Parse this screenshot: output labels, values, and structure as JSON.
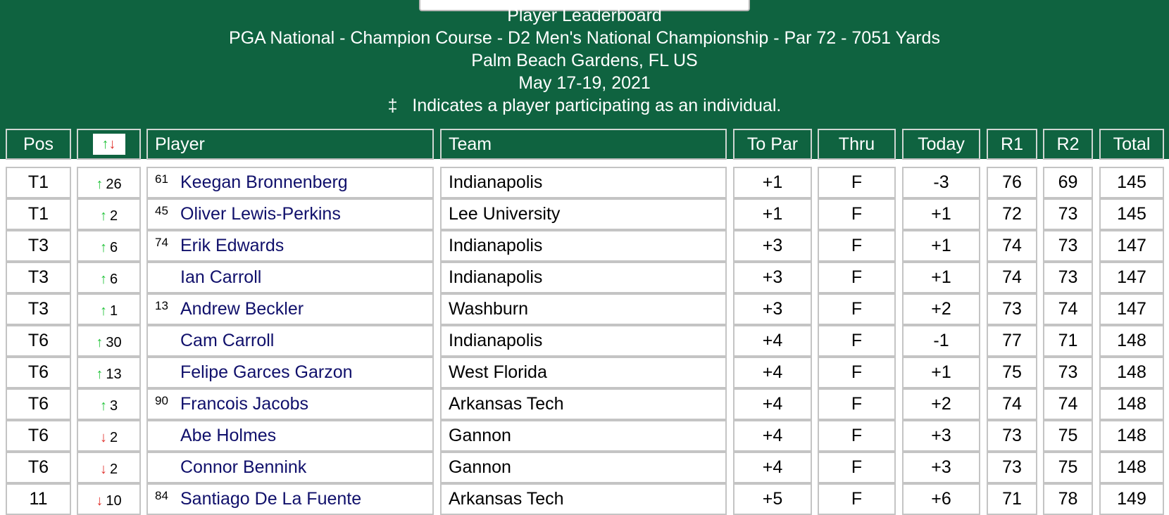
{
  "header": {
    "title": "Player Leaderboard",
    "course": "PGA National - Champion Course - D2 Men's National Championship - Par 72 - 7051 Yards",
    "location": "Palm Beach Gardens, FL US",
    "dates": "May 17-19, 2021",
    "note_symbol": "‡",
    "note": "Indicates a player participating as an individual."
  },
  "colors": {
    "brand_green": "#0f6340",
    "player_link": "#10106b",
    "up": "#22c33a",
    "down": "#e0342f"
  },
  "columns": [
    "Pos",
    "movement-icon",
    "Player",
    "Team",
    "To Par",
    "Thru",
    "Today",
    "R1",
    "R2",
    "Total"
  ],
  "rows": [
    {
      "pos": "T1",
      "dir": "up",
      "move": "26",
      "seed": "61",
      "player": "Keegan Bronnenberg",
      "team": "Indianapolis",
      "topar": "+1",
      "thru": "F",
      "today": "-3",
      "r1": "76",
      "r2": "69",
      "total": "145"
    },
    {
      "pos": "T1",
      "dir": "up",
      "move": "2",
      "seed": "45",
      "player": "Oliver Lewis-Perkins",
      "team": "Lee University",
      "topar": "+1",
      "thru": "F",
      "today": "+1",
      "r1": "72",
      "r2": "73",
      "total": "145"
    },
    {
      "pos": "T3",
      "dir": "up",
      "move": "6",
      "seed": "74",
      "player": "Erik Edwards",
      "team": "Indianapolis",
      "topar": "+3",
      "thru": "F",
      "today": "+1",
      "r1": "74",
      "r2": "73",
      "total": "147"
    },
    {
      "pos": "T3",
      "dir": "up",
      "move": "6",
      "seed": "",
      "player": "Ian Carroll",
      "team": "Indianapolis",
      "topar": "+3",
      "thru": "F",
      "today": "+1",
      "r1": "74",
      "r2": "73",
      "total": "147"
    },
    {
      "pos": "T3",
      "dir": "up",
      "move": "1",
      "seed": "13",
      "player": "Andrew Beckler",
      "team": "Washburn",
      "topar": "+3",
      "thru": "F",
      "today": "+2",
      "r1": "73",
      "r2": "74",
      "total": "147"
    },
    {
      "pos": "T6",
      "dir": "up",
      "move": "30",
      "seed": "",
      "player": "Cam Carroll",
      "team": "Indianapolis",
      "topar": "+4",
      "thru": "F",
      "today": "-1",
      "r1": "77",
      "r2": "71",
      "total": "148"
    },
    {
      "pos": "T6",
      "dir": "up",
      "move": "13",
      "seed": "",
      "player": "Felipe Garces Garzon",
      "team": "West Florida",
      "topar": "+4",
      "thru": "F",
      "today": "+1",
      "r1": "75",
      "r2": "73",
      "total": "148"
    },
    {
      "pos": "T6",
      "dir": "up",
      "move": "3",
      "seed": "90",
      "player": "Francois Jacobs",
      "team": "Arkansas Tech",
      "topar": "+4",
      "thru": "F",
      "today": "+2",
      "r1": "74",
      "r2": "74",
      "total": "148"
    },
    {
      "pos": "T6",
      "dir": "down",
      "move": "2",
      "seed": "",
      "player": "Abe Holmes",
      "team": "Gannon",
      "topar": "+4",
      "thru": "F",
      "today": "+3",
      "r1": "73",
      "r2": "75",
      "total": "148"
    },
    {
      "pos": "T6",
      "dir": "down",
      "move": "2",
      "seed": "",
      "player": "Connor Bennink",
      "team": "Gannon",
      "topar": "+4",
      "thru": "F",
      "today": "+3",
      "r1": "73",
      "r2": "75",
      "total": "148"
    },
    {
      "pos": "11",
      "dir": "down",
      "move": "10",
      "seed": "84",
      "player": "Santiago De La Fuente",
      "team": "Arkansas Tech",
      "topar": "+5",
      "thru": "F",
      "today": "+6",
      "r1": "71",
      "r2": "78",
      "total": "149"
    }
  ]
}
